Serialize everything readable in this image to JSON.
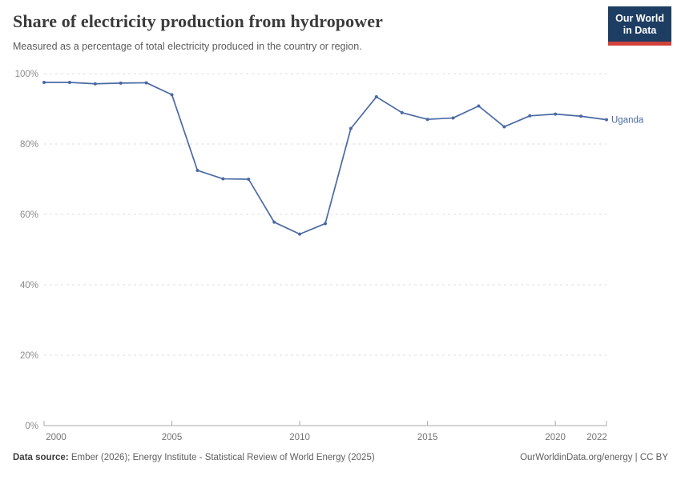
{
  "header": {
    "title": "Share of electricity production from hydropower",
    "subtitle": "Measured as a percentage of total electricity produced in the country or region.",
    "logo": {
      "line1": "Our World",
      "line2": "in Data"
    }
  },
  "chart_data": {
    "type": "line",
    "title": "Share of electricity production from hydropower",
    "subtitle": "Measured as a percentage of total electricity produced in the country or region.",
    "series": [
      {
        "name": "Uganda",
        "x": [
          2000,
          2001,
          2002,
          2003,
          2004,
          2005,
          2006,
          2007,
          2008,
          2009,
          2010,
          2011,
          2012,
          2013,
          2014,
          2015,
          2016,
          2017,
          2018,
          2019,
          2020,
          2021,
          2022
        ],
        "values": [
          97.5,
          97.5,
          97.1,
          97.3,
          97.4,
          94.0,
          72.5,
          70.1,
          70.0,
          57.8,
          54.4,
          57.4,
          84.4,
          93.4,
          88.9,
          87.0,
          87.4,
          90.8,
          84.9,
          88.0,
          88.5,
          87.9,
          86.9
        ]
      }
    ],
    "xlabel": "",
    "ylabel": "",
    "xlim": [
      2000,
      2022
    ],
    "ylim": [
      0,
      100
    ],
    "x_ticks": [
      2000,
      2005,
      2010,
      2015,
      2020,
      2022
    ],
    "x_tick_labels": [
      "2000",
      "2005",
      "2010",
      "2015",
      "2020",
      "2022"
    ],
    "y_ticks": [
      0,
      20,
      40,
      60,
      80,
      100
    ],
    "y_tick_labels": [
      "0%",
      "20%",
      "40%",
      "60%",
      "80%",
      "100%"
    ],
    "grid": "horizontal-dashed",
    "legend": "end-of-line-label",
    "marker": "dot"
  },
  "footer": {
    "datasource_label": "Data source:",
    "datasource_text": " Ember (2026); Energy Institute - Statistical Review of World Energy (2025)",
    "link_text": "OurWorldinData.org/energy | CC BY"
  },
  "colors": {
    "line": "#4a69a3",
    "entity_label": "#4a69a3",
    "title": "#3a3a3a",
    "subtitle": "#5b5b5b",
    "grid": "#dcdcdc",
    "axis": "#a8a8a8",
    "y_tick_text": "#8c8c8c",
    "x_tick_text": "#737373",
    "logo_bg": "#1d3d63",
    "logo_accent": "#d0413a"
  }
}
